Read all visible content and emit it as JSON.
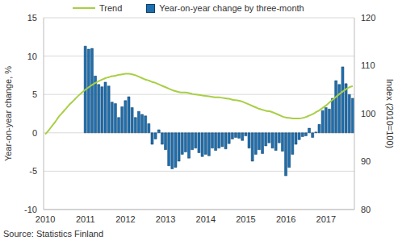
{
  "chart_data": {
    "type": "bar",
    "categories": [
      "2010",
      null,
      null,
      null,
      null,
      null,
      null,
      null,
      null,
      null,
      null,
      null,
      "2011",
      null,
      null,
      null,
      null,
      null,
      null,
      null,
      null,
      null,
      null,
      null,
      "2012",
      null,
      null,
      null,
      null,
      null,
      null,
      null,
      null,
      null,
      null,
      null,
      "2013",
      null,
      null,
      null,
      null,
      null,
      null,
      null,
      null,
      null,
      null,
      null,
      "2014",
      null,
      null,
      null,
      null,
      null,
      null,
      null,
      null,
      null,
      null,
      null,
      "2015",
      null,
      null,
      null,
      null,
      null,
      null,
      null,
      null,
      null,
      null,
      null,
      "2016",
      null,
      null,
      null,
      null,
      null,
      null,
      null,
      null,
      null,
      null,
      null,
      "2017",
      null,
      null,
      null,
      null,
      null,
      null,
      null,
      null
    ],
    "series": [
      {
        "name": "Trend",
        "type": "line",
        "axis": "y2",
        "color": "#a8cf45",
        "values": [
          95.7,
          96.5,
          97.4,
          98.3,
          99.3,
          100.1,
          100.9,
          101.7,
          102.4,
          103.1,
          103.8,
          104.4,
          105.0,
          105.5,
          106.0,
          106.4,
          106.8,
          107.1,
          107.4,
          107.6,
          107.8,
          107.9,
          108.1,
          108.2,
          108.3,
          108.3,
          108.2,
          108.0,
          107.7,
          107.4,
          107.1,
          106.9,
          106.6,
          106.4,
          106.1,
          105.8,
          105.5,
          105.2,
          104.9,
          104.7,
          104.5,
          104.4,
          104.4,
          104.3,
          104.1,
          104.0,
          103.9,
          103.8,
          103.7,
          103.6,
          103.5,
          103.4,
          103.4,
          103.3,
          103.2,
          103.1,
          102.9,
          102.8,
          102.7,
          102.5,
          102.2,
          101.9,
          101.6,
          101.3,
          101.0,
          100.8,
          100.6,
          100.5,
          100.3,
          100.0,
          99.7,
          99.4,
          99.2,
          99.1,
          99.0,
          99.0,
          99.0,
          99.1,
          99.3,
          99.6,
          99.9,
          100.3,
          100.7,
          101.2,
          101.7,
          102.3,
          102.9,
          103.5,
          104.1,
          104.6,
          105.1,
          105.5,
          105.7
        ]
      },
      {
        "name": "Year-on-year change by three-month",
        "type": "bar",
        "color": "#1f6fae",
        "values": [
          null,
          null,
          null,
          null,
          null,
          null,
          null,
          null,
          null,
          null,
          null,
          null,
          11.3,
          10.9,
          11.0,
          7.4,
          6.3,
          6.0,
          6.6,
          6.1,
          4.0,
          3.8,
          2.0,
          3.4,
          4.2,
          4.7,
          3.3,
          2.0,
          2.8,
          2.4,
          2.2,
          1.2,
          -1.5,
          -0.8,
          0.4,
          -1.5,
          -2.2,
          -4.3,
          -4.7,
          -4.5,
          -3.7,
          -2.8,
          -2.5,
          -3.3,
          -2.2,
          -2.0,
          -2.6,
          -3.1,
          -2.8,
          -3.0,
          -2.0,
          -2.3,
          -2.0,
          -1.8,
          -2.1,
          -1.4,
          -0.8,
          -0.6,
          -0.7,
          -1.0,
          -0.4,
          -2.0,
          -3.7,
          -2.8,
          -2.2,
          -2.7,
          -1.7,
          -1.3,
          -2.0,
          -2.3,
          -1.3,
          -2.4,
          -5.6,
          -4.5,
          -2.8,
          -1.5,
          -0.9,
          -0.5,
          -0.4,
          0.6,
          -0.6,
          0.1,
          1.1,
          2.9,
          3.3,
          3.1,
          4.5,
          6.8,
          6.3,
          8.6,
          6.4,
          5.0,
          4.5
        ]
      }
    ],
    "ylim": [
      -10,
      15
    ],
    "yticks": [
      -10,
      -5,
      0,
      5,
      10,
      15
    ],
    "y2lim": [
      80,
      120
    ],
    "y2ticks": [
      80,
      90,
      100,
      110,
      120
    ],
    "ylabel": "Year-on-year change, %",
    "y2label": "Index (2010=100)",
    "source": "Source: Statistics Finland",
    "grid": true,
    "legend": "top"
  }
}
